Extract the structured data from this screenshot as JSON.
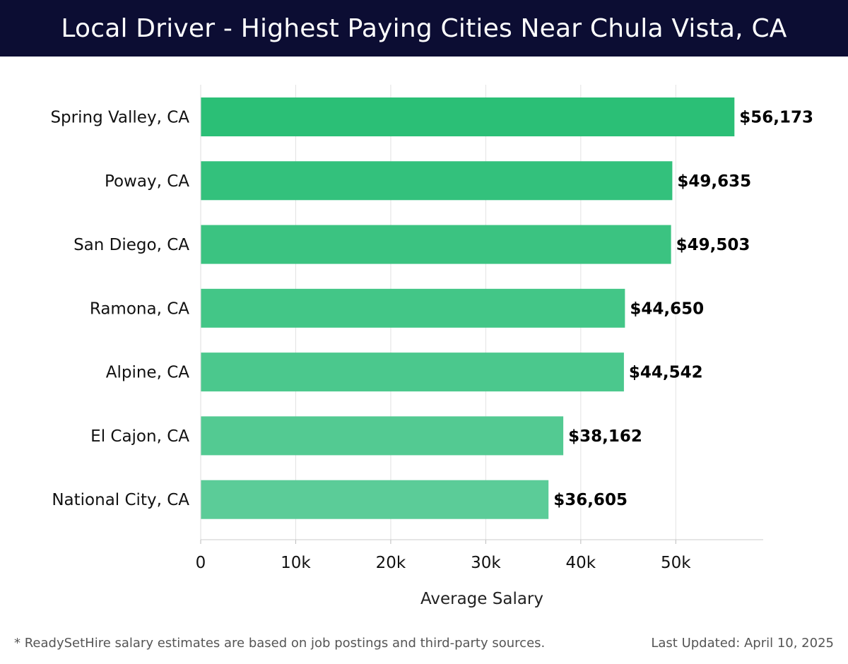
{
  "header": {
    "title": "Local Driver - Highest Paying Cities Near Chula Vista, CA"
  },
  "footer": {
    "note": "* ReadySetHire salary estimates are based on job postings and third-party sources.",
    "updated": "Last Updated: April 10, 2025"
  },
  "colors": {
    "title_bg": "#0c0d33",
    "bar_top": "#2bbf76",
    "bar_bottom": "#5bcc98",
    "grid": "#e2e2e2"
  },
  "chart_data": {
    "type": "bar",
    "orientation": "horizontal",
    "title": "Local Driver - Highest Paying Cities Near Chula Vista, CA",
    "xlabel": "Average Salary",
    "ylabel": "",
    "categories": [
      "Spring Valley, CA",
      "Poway, CA",
      "San Diego, CA",
      "Ramona, CA",
      "Alpine, CA",
      "El Cajon, CA",
      "National City, CA"
    ],
    "values": [
      56173,
      49635,
      49503,
      44650,
      44542,
      38162,
      36605
    ],
    "value_labels": [
      "$56,173",
      "$49,635",
      "$49,503",
      "$44,650",
      "$44,542",
      "$38,162",
      "$36,605"
    ],
    "xlim": [
      0,
      59200
    ],
    "xticks": [
      0,
      10000,
      20000,
      30000,
      40000,
      50000
    ],
    "xtick_labels": [
      "0",
      "10k",
      "20k",
      "30k",
      "40k",
      "50k"
    ],
    "grid": true
  }
}
